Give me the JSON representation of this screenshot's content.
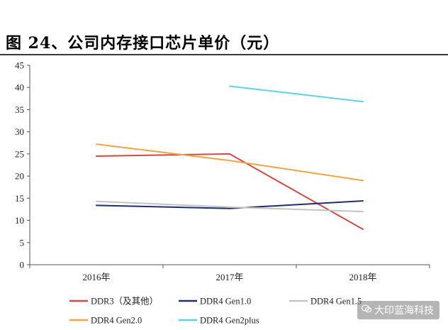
{
  "title": "图 24、公司内存接口芯片单价（元）",
  "watermark": "大印蓝海科技",
  "chart_data": {
    "type": "line",
    "title": "图 24、公司内存接口芯片单价（元）",
    "xlabel": "",
    "ylabel": "",
    "ylim": [
      0,
      45
    ],
    "yticks": [
      0,
      5,
      10,
      15,
      20,
      25,
      30,
      35,
      40,
      45
    ],
    "categories": [
      "2016年",
      "2017年",
      "2018年"
    ],
    "legend_position": "bottom",
    "grid": false,
    "series": [
      {
        "name": "DDR3（及其他）",
        "color": "#d04a46",
        "values": [
          24.5,
          25.0,
          8.0
        ]
      },
      {
        "name": "DDR4 Gen1.0",
        "color": "#1f2f6e",
        "values": [
          13.4,
          12.7,
          14.4
        ]
      },
      {
        "name": "DDR4 Gen1.5",
        "color": "#c3c3c8",
        "values": [
          14.3,
          13.0,
          12.0
        ]
      },
      {
        "name": "DDR4 Gen2.0",
        "color": "#f2a444",
        "values": [
          27.2,
          23.5,
          19.0
        ]
      },
      {
        "name": "DDR4 Gen2plus",
        "color": "#5fd3df",
        "values": [
          null,
          40.3,
          36.8
        ]
      }
    ]
  }
}
